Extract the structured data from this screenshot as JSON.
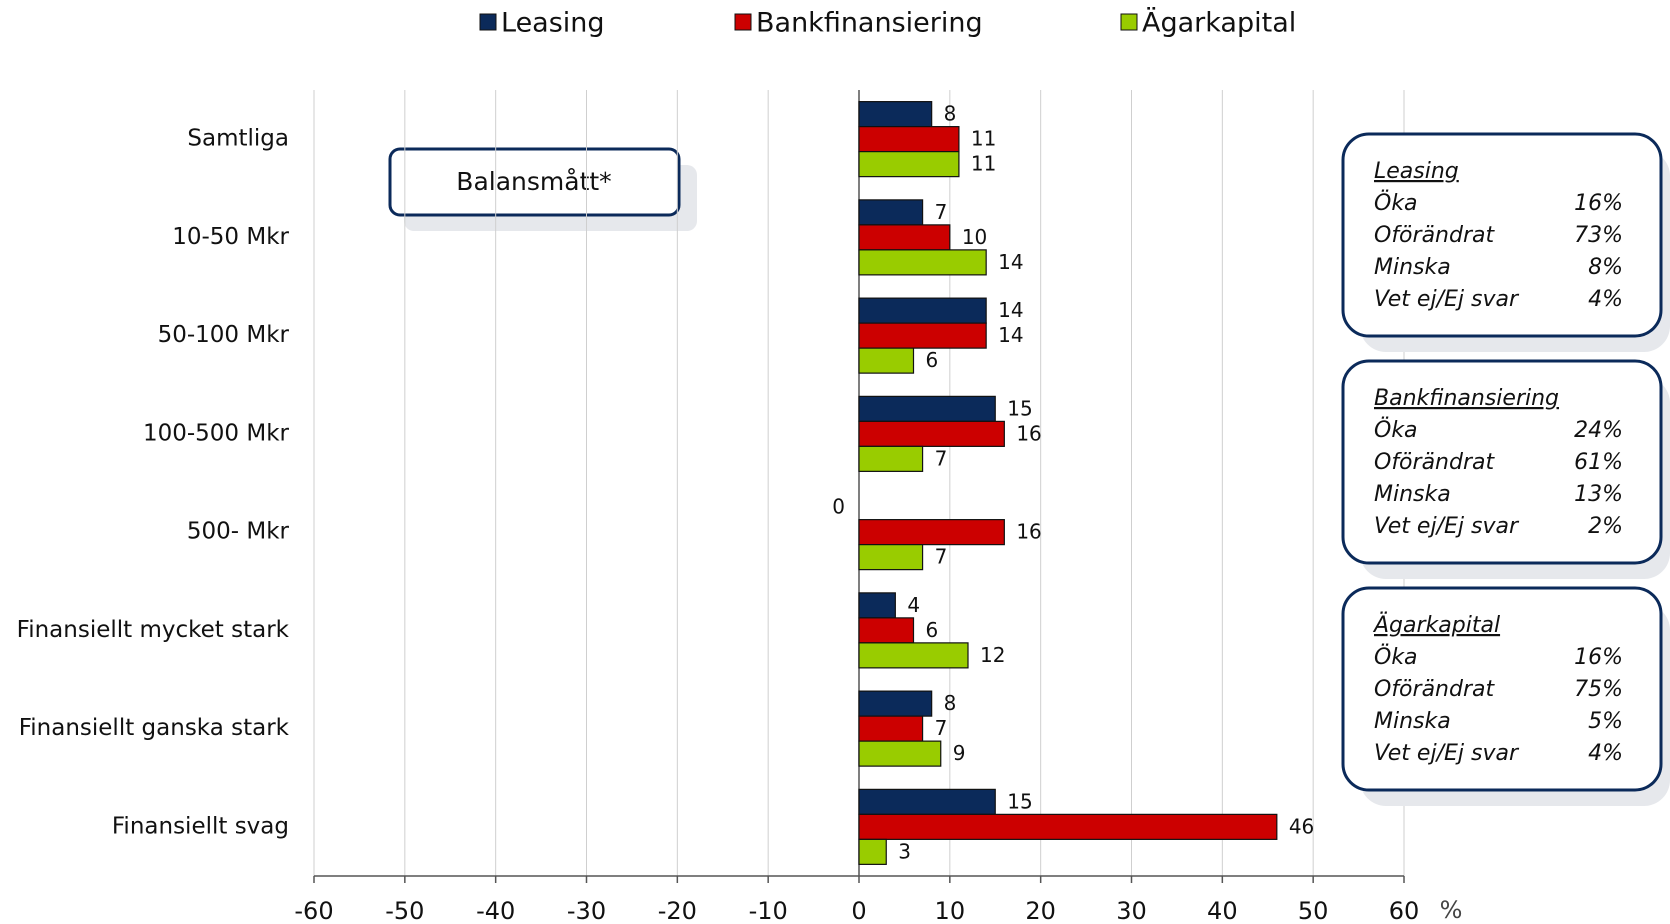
{
  "chart_data": {
    "type": "hbar",
    "categories": [
      "Samtliga",
      "10-50 Mkr",
      "50-100 Mkr",
      "100-500 Mkr",
      "500- Mkr",
      "Finansiellt mycket stark",
      "Finansiellt ganska stark",
      "Finansiellt svag"
    ],
    "series": [
      {
        "name": "Leasing",
        "color": "#0b2a5a",
        "values": [
          8,
          7,
          14,
          15,
          0,
          4,
          8,
          15
        ]
      },
      {
        "name": "Bankfinansiering",
        "color": "#cc0000",
        "values": [
          11,
          10,
          14,
          16,
          16,
          6,
          7,
          46
        ]
      },
      {
        "name": "Ägarkapital",
        "color": "#99cc00",
        "values": [
          11,
          14,
          6,
          7,
          7,
          12,
          9,
          3
        ]
      }
    ],
    "xlim": [
      -60,
      60
    ],
    "xticks": [
      -60,
      -50,
      -40,
      -30,
      -20,
      -10,
      0,
      10,
      20,
      30,
      40,
      50,
      60
    ],
    "x_unit": "%",
    "grid": true,
    "legend": "top",
    "annotation": "Balansmått*",
    "boxes": [
      {
        "title": "Leasing",
        "rows": [
          [
            "Öka",
            "16%"
          ],
          [
            "Oförändrat",
            "73%"
          ],
          [
            "Minska",
            "8%"
          ],
          [
            "Vet ej/Ej svar",
            "4%"
          ]
        ]
      },
      {
        "title": "Bankfinansiering",
        "rows": [
          [
            "Öka",
            "24%"
          ],
          [
            "Oförändrat",
            "61%"
          ],
          [
            "Minska",
            "13%"
          ],
          [
            "Vet ej/Ej svar",
            "2%"
          ]
        ]
      },
      {
        "title": "Ägarkapital",
        "rows": [
          [
            "Öka",
            "16%"
          ],
          [
            "Oförändrat",
            "75%"
          ],
          [
            "Minska",
            "5%"
          ],
          [
            "Vet ej/Ej svar",
            "4%"
          ]
        ]
      }
    ]
  }
}
